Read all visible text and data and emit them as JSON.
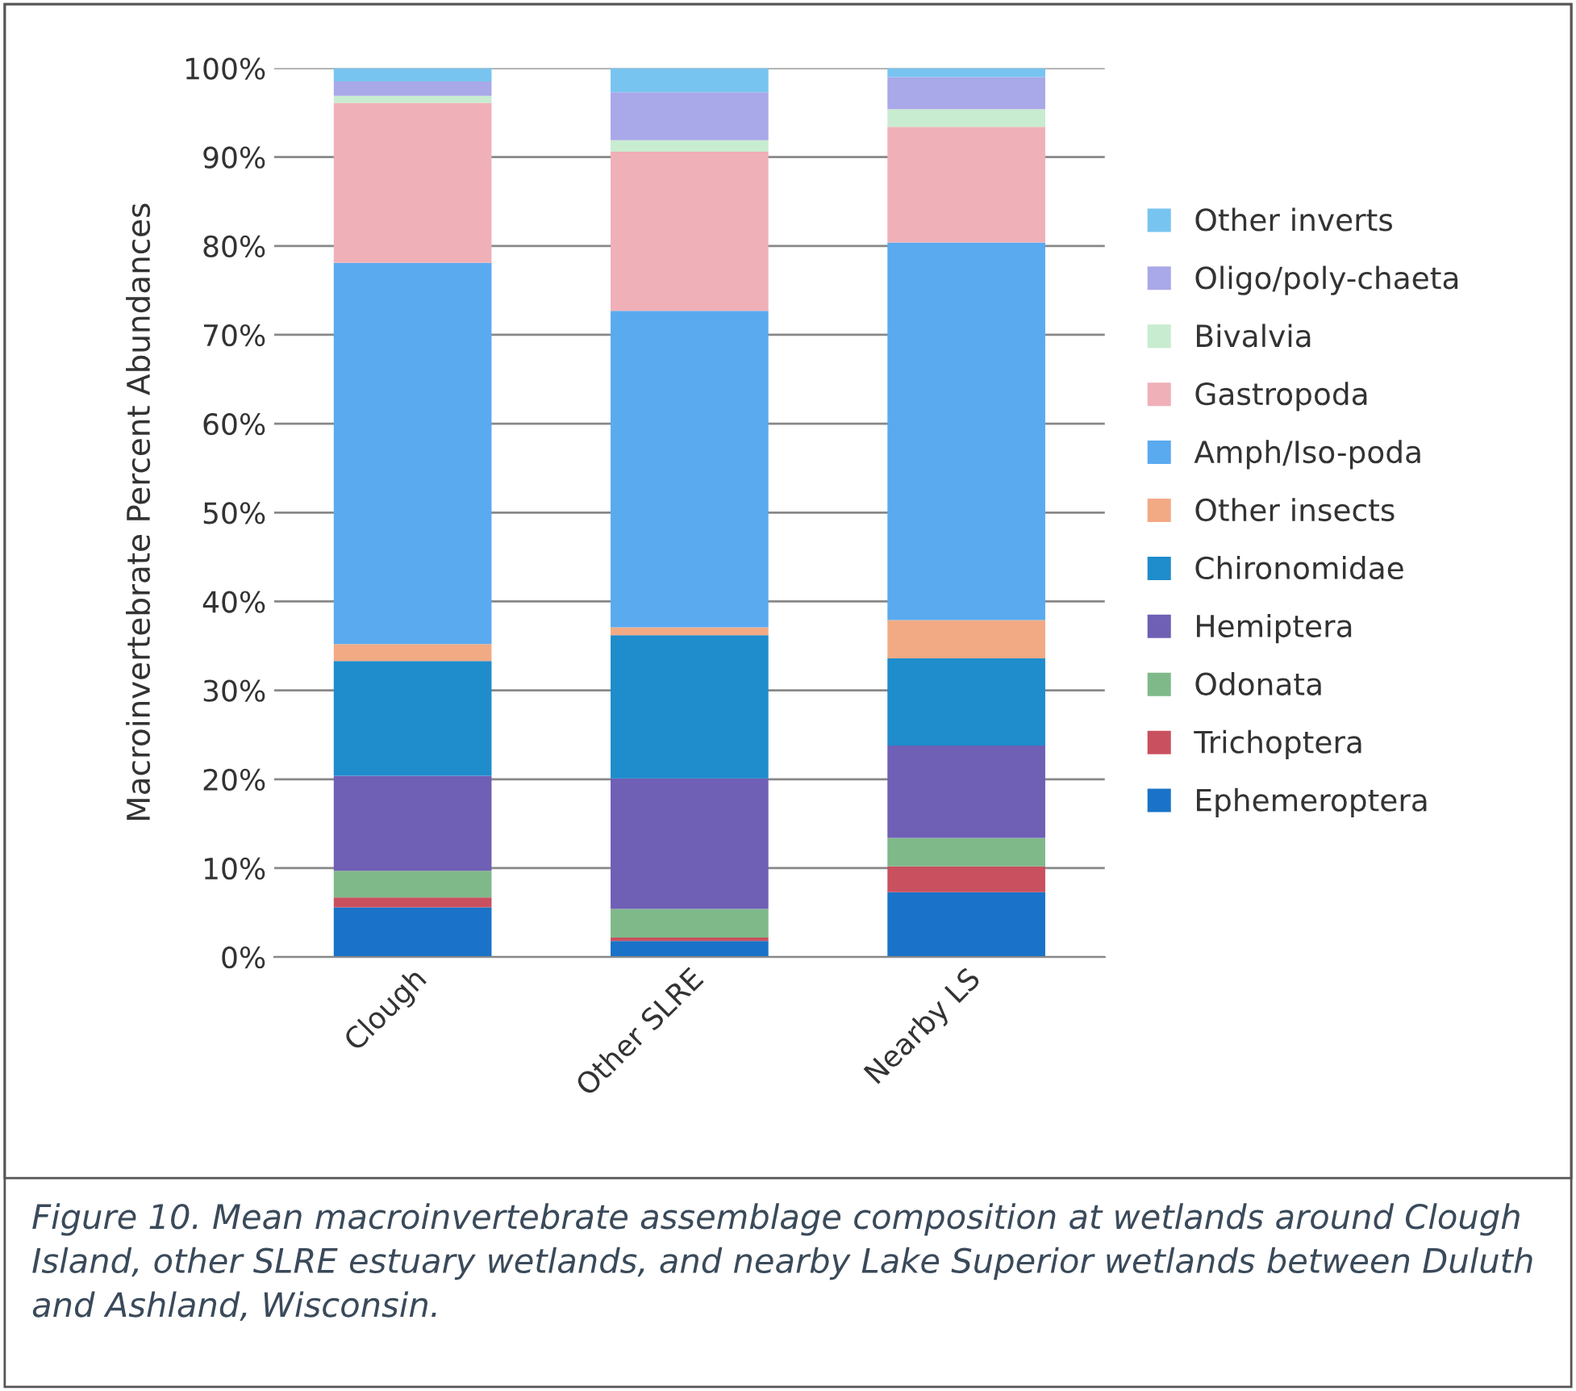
{
  "chart_data": {
    "type": "bar",
    "stacked": true,
    "ylabel": "Macroinvertebrate Percent Abundances",
    "categories": [
      "Clough",
      "Other SLRE",
      "Nearby LS"
    ],
    "series": [
      {
        "name": "Ephemeroptera",
        "color": "#1a73c8",
        "values": [
          5.6,
          1.8,
          7.3
        ]
      },
      {
        "name": "Trichoptera",
        "color": "#c9505f",
        "values": [
          1.1,
          0.4,
          2.9
        ]
      },
      {
        "name": "Odonata",
        "color": "#7fb98a",
        "values": [
          3.0,
          3.2,
          3.2
        ]
      },
      {
        "name": "Hemiptera",
        "color": "#6f5fb5",
        "values": [
          10.7,
          14.7,
          10.4
        ]
      },
      {
        "name": "Chironomidae",
        "color": "#1f8ccc",
        "values": [
          12.9,
          16.1,
          9.8
        ]
      },
      {
        "name": "Other insects",
        "color": "#f2aa84",
        "values": [
          1.9,
          0.9,
          4.3
        ]
      },
      {
        "name": "Amph/Iso-poda",
        "color": "#5aaaf0",
        "values": [
          42.9,
          35.6,
          42.5
        ]
      },
      {
        "name": "Gastropoda",
        "color": "#f0b0b8",
        "values": [
          18.0,
          17.9,
          13.0
        ]
      },
      {
        "name": "Bivalvia",
        "color": "#c8ecd0",
        "values": [
          0.8,
          1.3,
          2.0
        ]
      },
      {
        "name": "Oligo/poly-chaeta",
        "color": "#a9a8e8",
        "values": [
          1.6,
          5.4,
          3.6
        ]
      },
      {
        "name": "Other inverts",
        "color": "#78c4f0",
        "values": [
          1.5,
          2.7,
          1.0
        ]
      }
    ],
    "ylim": [
      0,
      100
    ],
    "yticks": [
      {
        "value": 0,
        "label": "0%"
      },
      {
        "value": 10,
        "label": "10%"
      },
      {
        "value": 20,
        "label": "20%"
      },
      {
        "value": 30,
        "label": "30%"
      },
      {
        "value": 40,
        "label": "40%"
      },
      {
        "value": 50,
        "label": "50%"
      },
      {
        "value": 60,
        "label": "60%"
      },
      {
        "value": 70,
        "label": "70%"
      },
      {
        "value": 80,
        "label": "80%"
      },
      {
        "value": 90,
        "label": "90%"
      },
      {
        "value": 100,
        "label": "100%"
      }
    ],
    "grid": "y",
    "legend": "right",
    "annotations": [
      "Figure 10. Mean macroinvertebrate assemblage composition at wetlands around Clough Island, other SLRE estuary wetlands, and nearby Lake Superior wetlands between Duluth and Ashland, Wisconsin."
    ]
  }
}
